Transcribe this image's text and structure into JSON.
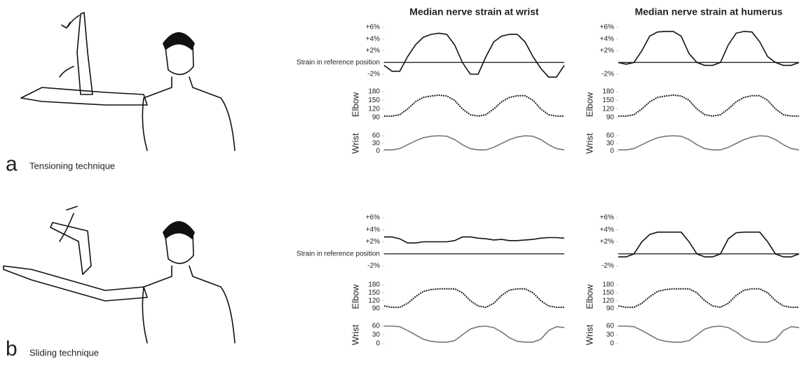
{
  "panels": [
    {
      "letter": "a",
      "caption": "Tensioning technique"
    },
    {
      "letter": "b",
      "caption": "Sliding technique"
    }
  ],
  "chart_data": [
    {
      "type": "line",
      "title": "Median nerve strain at wrist",
      "color": "#111",
      "line_style": "solid",
      "reference_line": true,
      "values": [
        -0.5,
        -1.5,
        -1.5,
        1,
        3,
        4.3,
        4.8,
        5,
        4.8,
        3,
        0,
        -2,
        -2,
        1,
        3.5,
        4.5,
        4.8,
        4.8,
        3.5,
        1,
        -1,
        -2.5,
        -2.5,
        -0.5
      ],
      "ylim": [
        -2,
        6
      ],
      "yticks": [
        {
          "value": 6,
          "label": "+6%"
        },
        {
          "value": 4,
          "label": "+4%"
        },
        {
          "value": 2,
          "label": "+2%"
        },
        {
          "value": 0,
          "label": "Strain in reference position"
        },
        {
          "value": -2,
          "label": "-2%"
        }
      ]
    },
    {
      "type": "line",
      "y_label": "Elbow",
      "color": "#222",
      "line_style": "dotted",
      "values": [
        95,
        95,
        100,
        120,
        145,
        160,
        165,
        168,
        165,
        150,
        120,
        100,
        95,
        100,
        120,
        145,
        160,
        166,
        166,
        150,
        120,
        100,
        95,
        95
      ],
      "ylim": [
        90,
        180
      ],
      "yticks": [
        180,
        150,
        120,
        90
      ]
    },
    {
      "type": "line",
      "y_label": "Wrist",
      "color": "#777",
      "line_style": "solid",
      "values": [
        5,
        5,
        10,
        25,
        40,
        52,
        58,
        60,
        58,
        45,
        25,
        10,
        5,
        5,
        15,
        30,
        45,
        55,
        60,
        58,
        45,
        25,
        10,
        5
      ],
      "ylim": [
        0,
        60
      ],
      "yticks": [
        60,
        30,
        0
      ]
    },
    {
      "type": "line",
      "title": "Median nerve strain at humerus",
      "color": "#111",
      "line_style": "solid",
      "reference_line": true,
      "values": [
        0,
        -0.3,
        0,
        2,
        4.5,
        5.2,
        5.3,
        5.3,
        4.5,
        1.5,
        0,
        -0.5,
        -0.5,
        0,
        3,
        5,
        5.3,
        5.2,
        3.5,
        1,
        0,
        -0.5,
        -0.5,
        0
      ],
      "ylim": [
        -2,
        6
      ],
      "yticks": [
        {
          "value": 6,
          "label": "+6%"
        },
        {
          "value": 4,
          "label": "+4%"
        },
        {
          "value": 2,
          "label": "+2%"
        },
        {
          "value": -2,
          "label": "-2%"
        }
      ]
    },
    {
      "type": "line",
      "y_label": "Elbow",
      "color": "#222",
      "line_style": "dotted",
      "values": [
        95,
        95,
        100,
        120,
        145,
        160,
        165,
        168,
        165,
        150,
        120,
        100,
        95,
        100,
        120,
        145,
        160,
        166,
        166,
        150,
        120,
        100,
        95,
        95
      ],
      "ylim": [
        90,
        180
      ],
      "yticks": [
        180,
        150,
        120,
        90
      ]
    },
    {
      "type": "line",
      "y_label": "Wrist",
      "color": "#777",
      "line_style": "solid",
      "values": [
        5,
        5,
        10,
        25,
        40,
        52,
        58,
        60,
        58,
        45,
        25,
        10,
        5,
        5,
        15,
        30,
        45,
        55,
        60,
        58,
        45,
        25,
        10,
        5
      ],
      "ylim": [
        0,
        60
      ],
      "yticks": [
        60,
        30,
        0
      ]
    },
    {
      "type": "line",
      "color": "#111",
      "line_style": "solid",
      "reference_line": true,
      "values": [
        2.8,
        2.8,
        2.5,
        1.8,
        1.8,
        2,
        2,
        2,
        2,
        2.2,
        2.8,
        2.8,
        2.6,
        2.5,
        2.3,
        2.4,
        2.2,
        2.2,
        2.3,
        2.4,
        2.6,
        2.7,
        2.7,
        2.6
      ],
      "ylim": [
        -2,
        6
      ],
      "yticks": [
        {
          "value": 6,
          "label": "+6%"
        },
        {
          "value": 4,
          "label": "+4%"
        },
        {
          "value": 2,
          "label": "+2%"
        },
        {
          "value": 0,
          "label": "Strain in reference position"
        },
        {
          "value": -2,
          "label": "-2%"
        }
      ]
    },
    {
      "type": "line",
      "y_label": "Elbow",
      "color": "#222",
      "line_style": "dotted",
      "values": [
        100,
        95,
        95,
        110,
        135,
        155,
        162,
        165,
        165,
        165,
        150,
        120,
        100,
        95,
        110,
        140,
        160,
        165,
        165,
        150,
        120,
        100,
        95,
        95
      ],
      "ylim": [
        90,
        180
      ],
      "yticks": [
        180,
        150,
        120,
        90
      ]
    },
    {
      "type": "line",
      "y_label": "Wrist",
      "color": "#777",
      "line_style": "solid",
      "values": [
        60,
        60,
        58,
        45,
        30,
        15,
        8,
        5,
        5,
        10,
        30,
        50,
        58,
        60,
        55,
        40,
        20,
        8,
        5,
        5,
        15,
        45,
        58,
        55
      ],
      "ylim": [
        0,
        60
      ],
      "yticks": [
        60,
        30,
        0
      ]
    },
    {
      "type": "line",
      "color": "#111",
      "line_style": "solid",
      "reference_line": true,
      "values": [
        -0.5,
        -0.5,
        0,
        2,
        3.2,
        3.6,
        3.6,
        3.6,
        3.6,
        2,
        0,
        -0.5,
        -0.5,
        0,
        2.5,
        3.5,
        3.6,
        3.6,
        3.6,
        2,
        0,
        -0.5,
        -0.5,
        0
      ],
      "ylim": [
        -2,
        6
      ],
      "yticks": [
        {
          "value": 6,
          "label": "+6%"
        },
        {
          "value": 4,
          "label": "+4%"
        },
        {
          "value": 2,
          "label": "+2%"
        },
        {
          "value": -2,
          "label": "-2%"
        }
      ]
    },
    {
      "type": "line",
      "y_label": "Elbow",
      "color": "#222",
      "line_style": "dotted",
      "values": [
        100,
        95,
        95,
        110,
        135,
        155,
        162,
        165,
        165,
        165,
        150,
        120,
        100,
        95,
        110,
        140,
        160,
        165,
        165,
        150,
        120,
        100,
        95,
        95
      ],
      "ylim": [
        90,
        180
      ],
      "yticks": [
        180,
        150,
        120,
        90
      ]
    },
    {
      "type": "line",
      "y_label": "Wrist",
      "color": "#777",
      "line_style": "solid",
      "values": [
        60,
        60,
        58,
        45,
        30,
        15,
        8,
        5,
        5,
        10,
        30,
        50,
        58,
        60,
        55,
        40,
        20,
        8,
        5,
        5,
        15,
        45,
        58,
        55
      ],
      "ylim": [
        0,
        60
      ],
      "yticks": [
        60,
        30,
        0
      ]
    }
  ]
}
